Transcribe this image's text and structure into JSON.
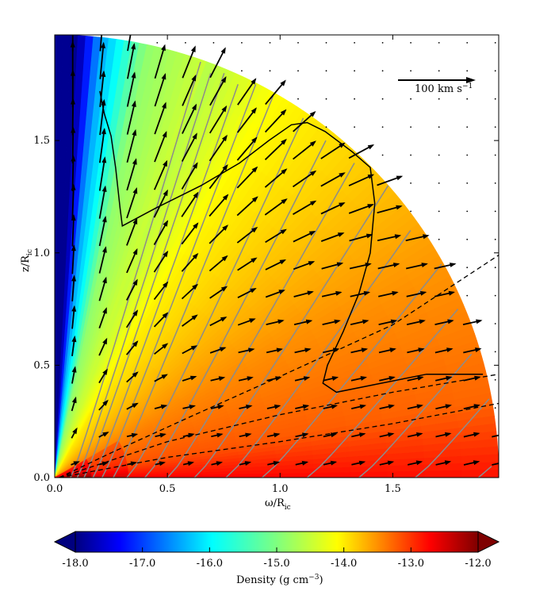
{
  "chart_data": {
    "type": "heatmap",
    "title": "",
    "xlabel": {
      "main": "ω/R",
      "sub": "ic"
    },
    "ylabel": {
      "main": "z/R",
      "sub": "ic"
    },
    "xlim": [
      0.0,
      1.97
    ],
    "ylim": [
      0.0,
      1.97
    ],
    "x_ticks": [
      {
        "value": 0.0,
        "label": "0.0"
      },
      {
        "value": 0.5,
        "label": "0.5"
      },
      {
        "value": 1.0,
        "label": "1.0"
      },
      {
        "value": 1.5,
        "label": "1.5"
      }
    ],
    "y_ticks": [
      {
        "value": 0.0,
        "label": "0.0"
      },
      {
        "value": 0.5,
        "label": "0.5"
      },
      {
        "value": 1.0,
        "label": "1.0"
      },
      {
        "value": 1.5,
        "label": "1.5"
      }
    ],
    "domain_outer_radius": 1.97,
    "density_colormap": "jet",
    "colorbar": {
      "label": {
        "main": "Density (g cm",
        "sup": "−3",
        "end": ")"
      },
      "range": [
        -18.0,
        -12.0
      ],
      "extend": "both",
      "ticks": [
        "-18.0",
        "-17.0",
        "-16.0",
        "-15.0",
        "-14.0",
        "-13.0",
        "-12.0"
      ],
      "tick_values": [
        -18,
        -17,
        -16,
        -15,
        -14,
        -13,
        -12
      ]
    },
    "velocity_key": {
      "label": "100 km s",
      "sup": "−1",
      "speed": 100
    },
    "sonic_surface": {
      "color": "#000000",
      "points": [
        [
          0.2,
          1.72
        ],
        [
          0.22,
          1.62
        ],
        [
          0.25,
          1.52
        ],
        [
          0.27,
          1.38
        ],
        [
          0.29,
          1.2
        ],
        [
          0.3,
          1.12
        ],
        [
          0.45,
          1.2
        ],
        [
          0.65,
          1.3
        ],
        [
          0.82,
          1.4
        ],
        [
          0.95,
          1.5
        ],
        [
          1.05,
          1.57
        ],
        [
          1.12,
          1.58
        ],
        [
          1.2,
          1.54
        ],
        [
          1.32,
          1.45
        ],
        [
          1.4,
          1.38
        ],
        [
          1.42,
          1.22
        ],
        [
          1.4,
          1.0
        ],
        [
          1.35,
          0.82
        ],
        [
          1.28,
          0.65
        ],
        [
          1.21,
          0.5
        ],
        [
          1.19,
          0.42
        ],
        [
          1.25,
          0.38
        ],
        [
          1.45,
          0.42
        ],
        [
          1.65,
          0.46
        ],
        [
          1.9,
          0.46
        ]
      ]
    },
    "dashed_streamlines": [
      [
        [
          0.02,
          0.0
        ],
        [
          0.25,
          0.11
        ],
        [
          0.6,
          0.27
        ],
        [
          1.0,
          0.45
        ],
        [
          1.5,
          0.68
        ],
        [
          1.97,
          0.99
        ]
      ],
      [
        [
          0.02,
          0.0
        ],
        [
          0.5,
          0.16
        ],
        [
          1.0,
          0.28
        ],
        [
          1.5,
          0.38
        ],
        [
          1.97,
          0.46
        ]
      ],
      [
        [
          0.02,
          0.0
        ],
        [
          0.5,
          0.09
        ],
        [
          1.0,
          0.16
        ],
        [
          1.5,
          0.24
        ],
        [
          1.97,
          0.33
        ]
      ]
    ],
    "field_line_footpoints": [
      0.07,
      0.1,
      0.13,
      0.17,
      0.21,
      0.26,
      0.32,
      0.4,
      0.5,
      0.62,
      0.76,
      0.92,
      1.12,
      1.35,
      1.6,
      1.88
    ],
    "velocity_field_note": "vectors on a regular grid, larger in low-density polar region"
  }
}
